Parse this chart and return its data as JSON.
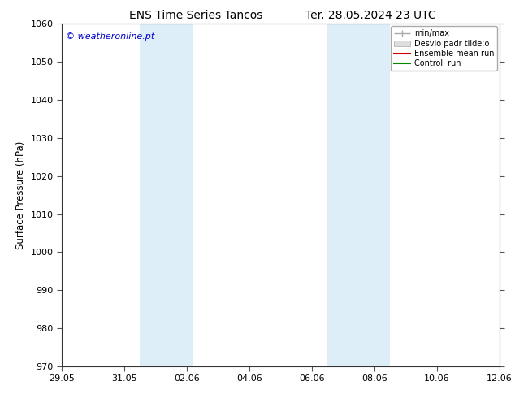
{
  "title": "ENS Time Series Tancos",
  "subtitle": "Ter. 28.05.2024 23 UTC",
  "ylabel": "Surface Pressure (hPa)",
  "ylim": [
    970,
    1060
  ],
  "yticks": [
    970,
    980,
    990,
    1000,
    1010,
    1020,
    1030,
    1040,
    1050,
    1060
  ],
  "xlim": [
    0,
    14
  ],
  "xtick_positions": [
    0,
    2,
    4,
    6,
    8,
    10,
    12,
    14
  ],
  "xtick_labels": [
    "29.05",
    "31.05",
    "02.06",
    "04.06",
    "06.06",
    "08.06",
    "10.06",
    "12.06"
  ],
  "shaded_bands": [
    {
      "start": 2.5,
      "end": 4.2,
      "color": "#ddeef8"
    },
    {
      "start": 8.5,
      "end": 10.5,
      "color": "#ddeef8"
    }
  ],
  "watermark": "© weatheronline.pt",
  "watermark_color": "#0000cc",
  "legend_labels": [
    "min/max",
    "Desvio padr tilde;o",
    "Ensemble mean run",
    "Controll run"
  ],
  "legend_colors": [
    "#aaaaaa",
    "#cccccc",
    "#cc0000",
    "#008800"
  ],
  "bg_color": "#ffffff",
  "title_fontsize": 10,
  "label_fontsize": 8.5,
  "tick_fontsize": 8,
  "watermark_fontsize": 8
}
